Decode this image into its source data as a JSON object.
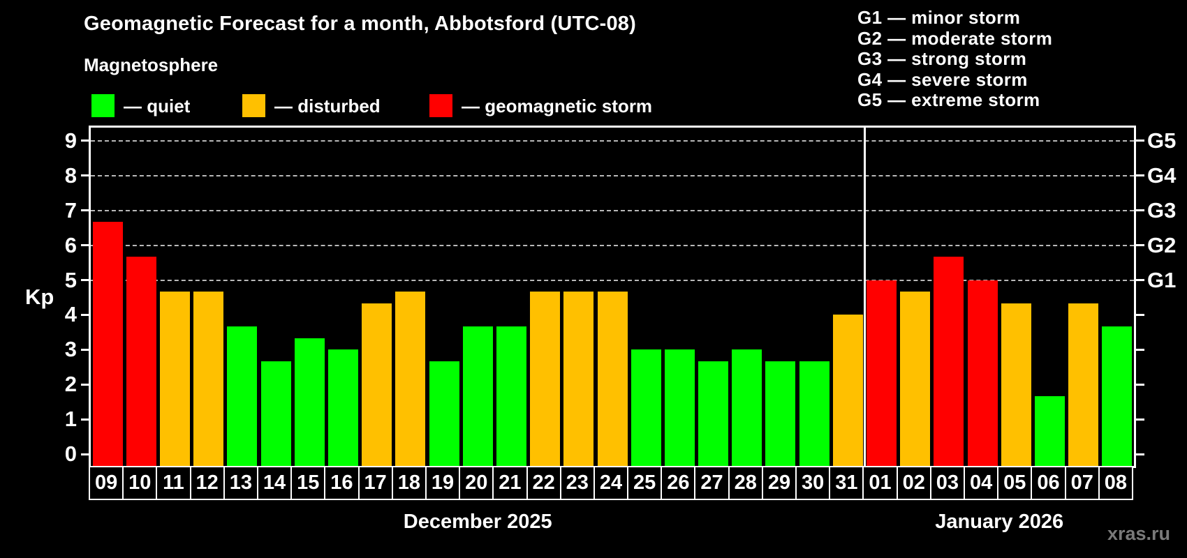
{
  "header": {
    "title": "Geomagnetic Forecast for a month, Abbotsford (UTC-08)",
    "subtitle": "Magnetosphere",
    "legend": [
      {
        "status": "quiet",
        "label": "— quiet",
        "color": "#00ff00"
      },
      {
        "status": "disturbed",
        "label": "— disturbed",
        "color": "#ffc000"
      },
      {
        "status": "storm",
        "label": "— geomagnetic storm",
        "color": "#ff0000"
      }
    ],
    "g_scale_legend": [
      "G1 — minor storm",
      "G2 — moderate storm",
      "G3 — strong storm",
      "G4 — severe storm",
      "G5 — extreme storm"
    ]
  },
  "chart_data": {
    "type": "bar",
    "title": "Geomagnetic Forecast for a month, Abbotsford (UTC-08)",
    "ylabel": "Kp",
    "ylim": [
      0,
      9.4
    ],
    "y_ticks": [
      0,
      1,
      2,
      3,
      4,
      5,
      6,
      7,
      8,
      9
    ],
    "gridlines_at": [
      5,
      6,
      7,
      8,
      9
    ],
    "grid_style": "dashed horizontal lines at storm levels G1–G5",
    "legend_position": "top",
    "right_axis_labels": [
      {
        "kp": 5,
        "label": "G1"
      },
      {
        "kp": 6,
        "label": "G2"
      },
      {
        "kp": 7,
        "label": "G3"
      },
      {
        "kp": 8,
        "label": "G4"
      },
      {
        "kp": 9,
        "label": "G5"
      }
    ],
    "status_colors": {
      "quiet": "#00ff00",
      "disturbed": "#ffc000",
      "storm": "#ff0000"
    },
    "sections": [
      {
        "label": "December 2025",
        "bars": [
          {
            "day": "09",
            "kp": 6.67,
            "status": "storm"
          },
          {
            "day": "10",
            "kp": 5.67,
            "status": "storm"
          },
          {
            "day": "11",
            "kp": 4.67,
            "status": "disturbed"
          },
          {
            "day": "12",
            "kp": 4.67,
            "status": "disturbed"
          },
          {
            "day": "13",
            "kp": 3.67,
            "status": "quiet"
          },
          {
            "day": "14",
            "kp": 2.67,
            "status": "quiet"
          },
          {
            "day": "15",
            "kp": 3.33,
            "status": "quiet"
          },
          {
            "day": "16",
            "kp": 3.0,
            "status": "quiet"
          },
          {
            "day": "17",
            "kp": 4.33,
            "status": "disturbed"
          },
          {
            "day": "18",
            "kp": 4.67,
            "status": "disturbed"
          },
          {
            "day": "19",
            "kp": 2.67,
            "status": "quiet"
          },
          {
            "day": "20",
            "kp": 3.67,
            "status": "quiet"
          },
          {
            "day": "21",
            "kp": 3.67,
            "status": "quiet"
          },
          {
            "day": "22",
            "kp": 4.67,
            "status": "disturbed"
          },
          {
            "day": "23",
            "kp": 4.67,
            "status": "disturbed"
          },
          {
            "day": "24",
            "kp": 4.67,
            "status": "disturbed"
          },
          {
            "day": "25",
            "kp": 3.0,
            "status": "quiet"
          },
          {
            "day": "26",
            "kp": 3.0,
            "status": "quiet"
          },
          {
            "day": "27",
            "kp": 2.67,
            "status": "quiet"
          },
          {
            "day": "28",
            "kp": 3.0,
            "status": "quiet"
          },
          {
            "day": "29",
            "kp": 2.67,
            "status": "quiet"
          },
          {
            "day": "30",
            "kp": 2.67,
            "status": "quiet"
          },
          {
            "day": "31",
            "kp": 4.0,
            "status": "disturbed"
          }
        ]
      },
      {
        "label": "January 2026",
        "bars": [
          {
            "day": "01",
            "kp": 5.0,
            "status": "storm"
          },
          {
            "day": "02",
            "kp": 4.67,
            "status": "disturbed"
          },
          {
            "day": "03",
            "kp": 5.67,
            "status": "storm"
          },
          {
            "day": "04",
            "kp": 5.0,
            "status": "storm"
          },
          {
            "day": "05",
            "kp": 4.33,
            "status": "disturbed"
          },
          {
            "day": "06",
            "kp": 1.67,
            "status": "quiet"
          },
          {
            "day": "07",
            "kp": 4.33,
            "status": "disturbed"
          },
          {
            "day": "08",
            "kp": 3.67,
            "status": "quiet"
          }
        ]
      }
    ]
  },
  "footer": {
    "watermark": "xras.ru"
  }
}
